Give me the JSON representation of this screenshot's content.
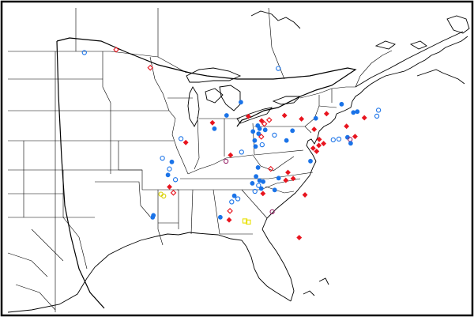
{
  "map": {
    "background_color": "#ffffff",
    "line_color": "#000000",
    "legend": []
  },
  "marker_styles": {
    "filled_circle": {
      "color": "#1a73e8",
      "shape": "circle",
      "fill": true
    },
    "open_circle": {
      "color": "#1a73e8",
      "shape": "circle",
      "fill": false
    },
    "filled_diamond": {
      "color": "#e8141e",
      "shape": "diamond",
      "fill": true
    },
    "open_diamond": {
      "color": "#e8141e",
      "shape": "diamond",
      "fill": false
    },
    "open_circle_purple": {
      "color": "#9b2a6d",
      "shape": "circle",
      "fill": false
    },
    "open_square_yellow": {
      "color": "#e8e000",
      "shape": "square",
      "fill": false
    },
    "open_circle_yellow": {
      "color": "#d8d000",
      "shape": "circle",
      "fill": false
    }
  },
  "markers": [
    {
      "lon": -103.8,
      "lat": 48.4,
      "style": "open_circle"
    },
    {
      "lon": -100.6,
      "lat": 48.6,
      "style": "open_diamond"
    },
    {
      "lon": -97.3,
      "lat": 46.7,
      "style": "open_diamond"
    },
    {
      "lon": -84.3,
      "lat": 46.5,
      "style": "open_circle"
    },
    {
      "lon": -88.1,
      "lat": 43.0,
      "style": "filled_circle"
    },
    {
      "lon": -89.6,
      "lat": 41.7,
      "style": "filled_circle"
    },
    {
      "lon": -87.3,
      "lat": 41.6,
      "style": "filled_diamond"
    },
    {
      "lon": -85.9,
      "lat": 41.2,
      "style": "filled_diamond"
    },
    {
      "lon": -85.1,
      "lat": 41.3,
      "style": "open_diamond"
    },
    {
      "lon": -91.1,
      "lat": 41.0,
      "style": "filled_diamond"
    },
    {
      "lon": -90.9,
      "lat": 40.4,
      "style": "filled_circle"
    },
    {
      "lon": -86.3,
      "lat": 40.7,
      "style": "filled_circle"
    },
    {
      "lon": -85.6,
      "lat": 40.9,
      "style": "open_diamond"
    },
    {
      "lon": -86.1,
      "lat": 40.4,
      "style": "filled_circle"
    },
    {
      "lon": -85.5,
      "lat": 40.3,
      "style": "filled_circle"
    },
    {
      "lon": -86.2,
      "lat": 39.9,
      "style": "filled_circle"
    },
    {
      "lon": -86.8,
      "lat": 40.1,
      "style": "filled_circle"
    },
    {
      "lon": -85.9,
      "lat": 39.6,
      "style": "open_diamond"
    },
    {
      "lon": -84.5,
      "lat": 39.8,
      "style": "open_circle"
    },
    {
      "lon": -86.6,
      "lat": 39.2,
      "style": "filled_circle"
    },
    {
      "lon": -85.8,
      "lat": 38.8,
      "style": "open_circle"
    },
    {
      "lon": -86.5,
      "lat": 38.6,
      "style": "filled_circle"
    },
    {
      "lon": -83.5,
      "lat": 41.8,
      "style": "filled_diamond"
    },
    {
      "lon": -81.7,
      "lat": 41.5,
      "style": "filled_diamond"
    },
    {
      "lon": -80.2,
      "lat": 41.6,
      "style": "filled_circle"
    },
    {
      "lon": -82.6,
      "lat": 40.3,
      "style": "filled_circle"
    },
    {
      "lon": -80.3,
      "lat": 40.5,
      "style": "filled_diamond"
    },
    {
      "lon": -83.2,
      "lat": 39.3,
      "style": "filled_circle"
    },
    {
      "lon": -79.7,
      "lat": 39.5,
      "style": "filled_diamond"
    },
    {
      "lon": -79.2,
      "lat": 39.1,
      "style": "filled_diamond"
    },
    {
      "lon": -78.2,
      "lat": 39.5,
      "style": "open_circle"
    },
    {
      "lon": -77.6,
      "lat": 39.6,
      "style": "open_circle"
    },
    {
      "lon": -76.7,
      "lat": 39.8,
      "style": "filled_circle"
    },
    {
      "lon": -76.4,
      "lat": 39.6,
      "style": "open_circle_purple"
    },
    {
      "lon": -76.3,
      "lat": 39.2,
      "style": "filled_circle"
    },
    {
      "lon": -75.9,
      "lat": 39.9,
      "style": "filled_diamond"
    },
    {
      "lon": -76.9,
      "lat": 40.9,
      "style": "filled_diamond"
    },
    {
      "lon": -75.1,
      "lat": 41.8,
      "style": "filled_diamond"
    },
    {
      "lon": -73.7,
      "lat": 42.6,
      "style": "open_circle"
    },
    {
      "lon": -73.8,
      "lat": 42.0,
      "style": "open_circle"
    },
    {
      "lon": -75.9,
      "lat": 42.4,
      "style": "filled_circle"
    },
    {
      "lon": -76.3,
      "lat": 42.3,
      "style": "filled_circle"
    },
    {
      "lon": -77.6,
      "lat": 43.1,
      "style": "filled_circle"
    },
    {
      "lon": -79.1,
      "lat": 42.1,
      "style": "filled_diamond"
    },
    {
      "lon": -79.7,
      "lat": 38.9,
      "style": "filled_diamond"
    },
    {
      "lon": -80.3,
      "lat": 38.6,
      "style": "filled_diamond"
    },
    {
      "lon": -79.9,
      "lat": 38.3,
      "style": "filled_diamond"
    },
    {
      "lon": -80.5,
      "lat": 37.3,
      "style": "filled_circle"
    },
    {
      "lon": -94.0,
      "lat": 39.1,
      "style": "filled_diamond"
    },
    {
      "lon": -94.5,
      "lat": 39.5,
      "style": "open_circle"
    },
    {
      "lon": -96.6,
      "lat": 37.6,
      "style": "open_circle"
    },
    {
      "lon": -95.6,
      "lat": 37.2,
      "style": "filled_circle"
    },
    {
      "lon": -95.9,
      "lat": 36.5,
      "style": "open_circle"
    },
    {
      "lon": -96.1,
      "lat": 35.9,
      "style": "filled_circle"
    },
    {
      "lon": -95.3,
      "lat": 35.4,
      "style": "open_circle"
    },
    {
      "lon": -96.0,
      "lat": 34.7,
      "style": "filled_diamond"
    },
    {
      "lon": -95.6,
      "lat": 34.1,
      "style": "open_diamond"
    },
    {
      "lon": -97.0,
      "lat": 34.0,
      "style": "open_circle_yellow"
    },
    {
      "lon": -96.7,
      "lat": 33.8,
      "style": "open_circle_yellow"
    },
    {
      "lon": -98.0,
      "lat": 31.9,
      "style": "filled_circle"
    },
    {
      "lon": -98.1,
      "lat": 31.7,
      "style": "filled_circle"
    },
    {
      "lon": -89.2,
      "lat": 37.7,
      "style": "filled_diamond"
    },
    {
      "lon": -89.7,
      "lat": 37.1,
      "style": "open_circle_purple"
    },
    {
      "lon": -88.0,
      "lat": 38.0,
      "style": "open_circle"
    },
    {
      "lon": -86.2,
      "lat": 36.5,
      "style": "filled_circle"
    },
    {
      "lon": -84.8,
      "lat": 36.4,
      "style": "open_diamond"
    },
    {
      "lon": -82.9,
      "lat": 36.1,
      "style": "filled_diamond"
    },
    {
      "lon": -82.3,
      "lat": 35.5,
      "style": "filled_diamond"
    },
    {
      "lon": -83.9,
      "lat": 35.5,
      "style": "filled_circle"
    },
    {
      "lon": -85.6,
      "lat": 35.1,
      "style": "filled_circle"
    },
    {
      "lon": -86.0,
      "lat": 35.2,
      "style": "filled_circle"
    },
    {
      "lon": -86.4,
      "lat": 35.6,
      "style": "filled_circle"
    },
    {
      "lon": -86.8,
      "lat": 34.9,
      "style": "filled_circle"
    },
    {
      "lon": -86.1,
      "lat": 34.7,
      "style": "open_circle"
    },
    {
      "lon": -85.8,
      "lat": 34.4,
      "style": "filled_circle"
    },
    {
      "lon": -86.5,
      "lat": 34.1,
      "style": "open_circle"
    },
    {
      "lon": -85.6,
      "lat": 33.9,
      "style": "filled_diamond"
    },
    {
      "lon": -84.3,
      "lat": 34.3,
      "style": "filled_circle"
    },
    {
      "lon": -83.1,
      "lat": 35.3,
      "style": "filled_diamond"
    },
    {
      "lon": -80.9,
      "lat": 33.9,
      "style": "filled_diamond"
    },
    {
      "lon": -88.8,
      "lat": 33.6,
      "style": "filled_circle"
    },
    {
      "lon": -88.4,
      "lat": 33.3,
      "style": "open_circle"
    },
    {
      "lon": -89.1,
      "lat": 33.0,
      "style": "open_circle"
    },
    {
      "lon": -89.3,
      "lat": 32.1,
      "style": "open_diamond"
    },
    {
      "lon": -90.4,
      "lat": 31.5,
      "style": "filled_circle"
    },
    {
      "lon": -89.4,
      "lat": 31.2,
      "style": "filled_diamond"
    },
    {
      "lon": -87.6,
      "lat": 31.1,
      "style": "open_square_yellow"
    },
    {
      "lon": -87.2,
      "lat": 31.0,
      "style": "open_square_yellow"
    },
    {
      "lon": -84.5,
      "lat": 32.1,
      "style": "open_circle_purple"
    },
    {
      "lon": -81.3,
      "lat": 29.6,
      "style": "filled_diamond"
    }
  ]
}
